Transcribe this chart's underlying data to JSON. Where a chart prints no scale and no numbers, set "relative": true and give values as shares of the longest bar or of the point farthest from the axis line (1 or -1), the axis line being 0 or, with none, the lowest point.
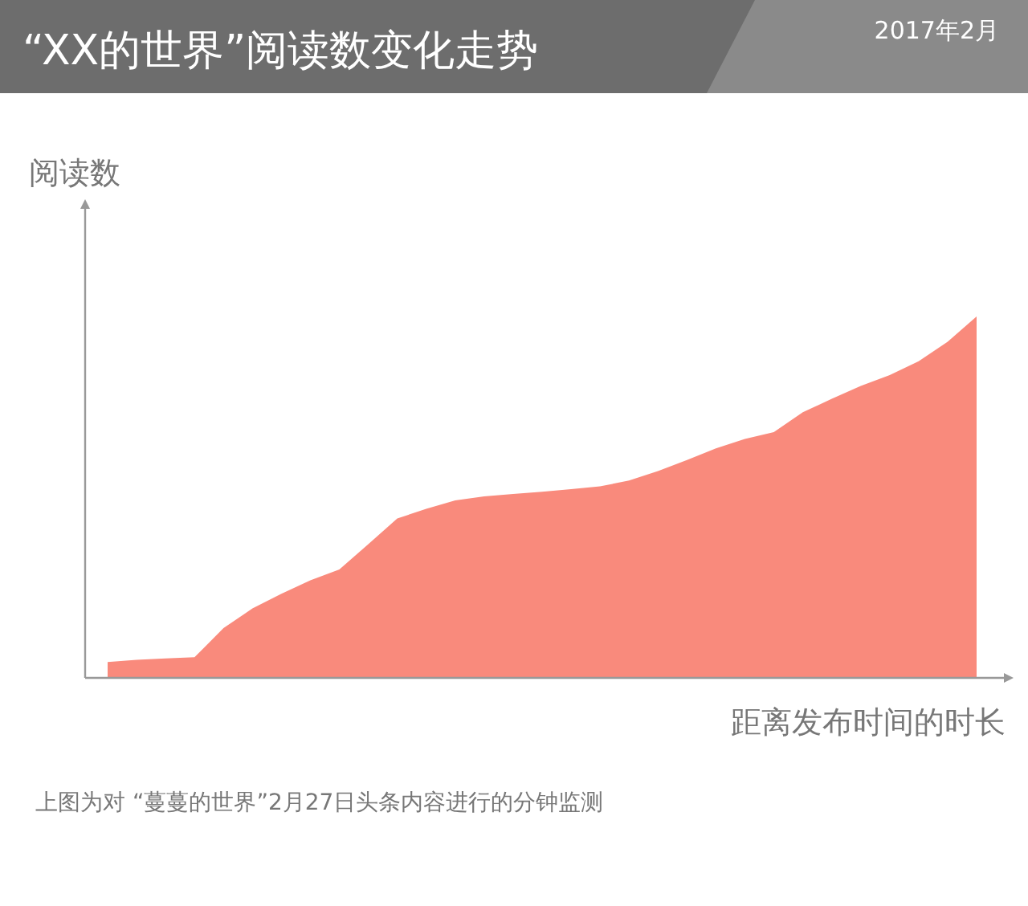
{
  "chart_data": {
    "type": "area",
    "title": "“XX的世界”阅读数变化走势",
    "subtitle": "2017年2月",
    "ylabel": "阅读数",
    "xlabel": "距离发布时间的时长",
    "relative": true,
    "categories": [
      null,
      null,
      null,
      null,
      null,
      null,
      null,
      null,
      null,
      null,
      null,
      null,
      null,
      null,
      null,
      null,
      null,
      null,
      null,
      null,
      null,
      null,
      null,
      null,
      null,
      null,
      null,
      null,
      null,
      null,
      null
    ],
    "series": [
      {
        "color": "#f98a7c",
        "values": [
          0.044,
          0.05,
          0.054,
          0.057,
          0.138,
          0.192,
          0.233,
          0.27,
          0.3,
          0.37,
          0.441,
          0.468,
          0.491,
          0.502,
          0.509,
          0.515,
          0.522,
          0.53,
          0.546,
          0.572,
          0.603,
          0.635,
          0.661,
          0.68,
          0.735,
          0.772,
          0.808,
          0.838,
          0.876,
          0.93,
          1.0
        ]
      }
    ],
    "annotations": [
      "上图为对 “蔓蔓的世界”2月27日头条内容进行的分钟监测"
    ]
  }
}
